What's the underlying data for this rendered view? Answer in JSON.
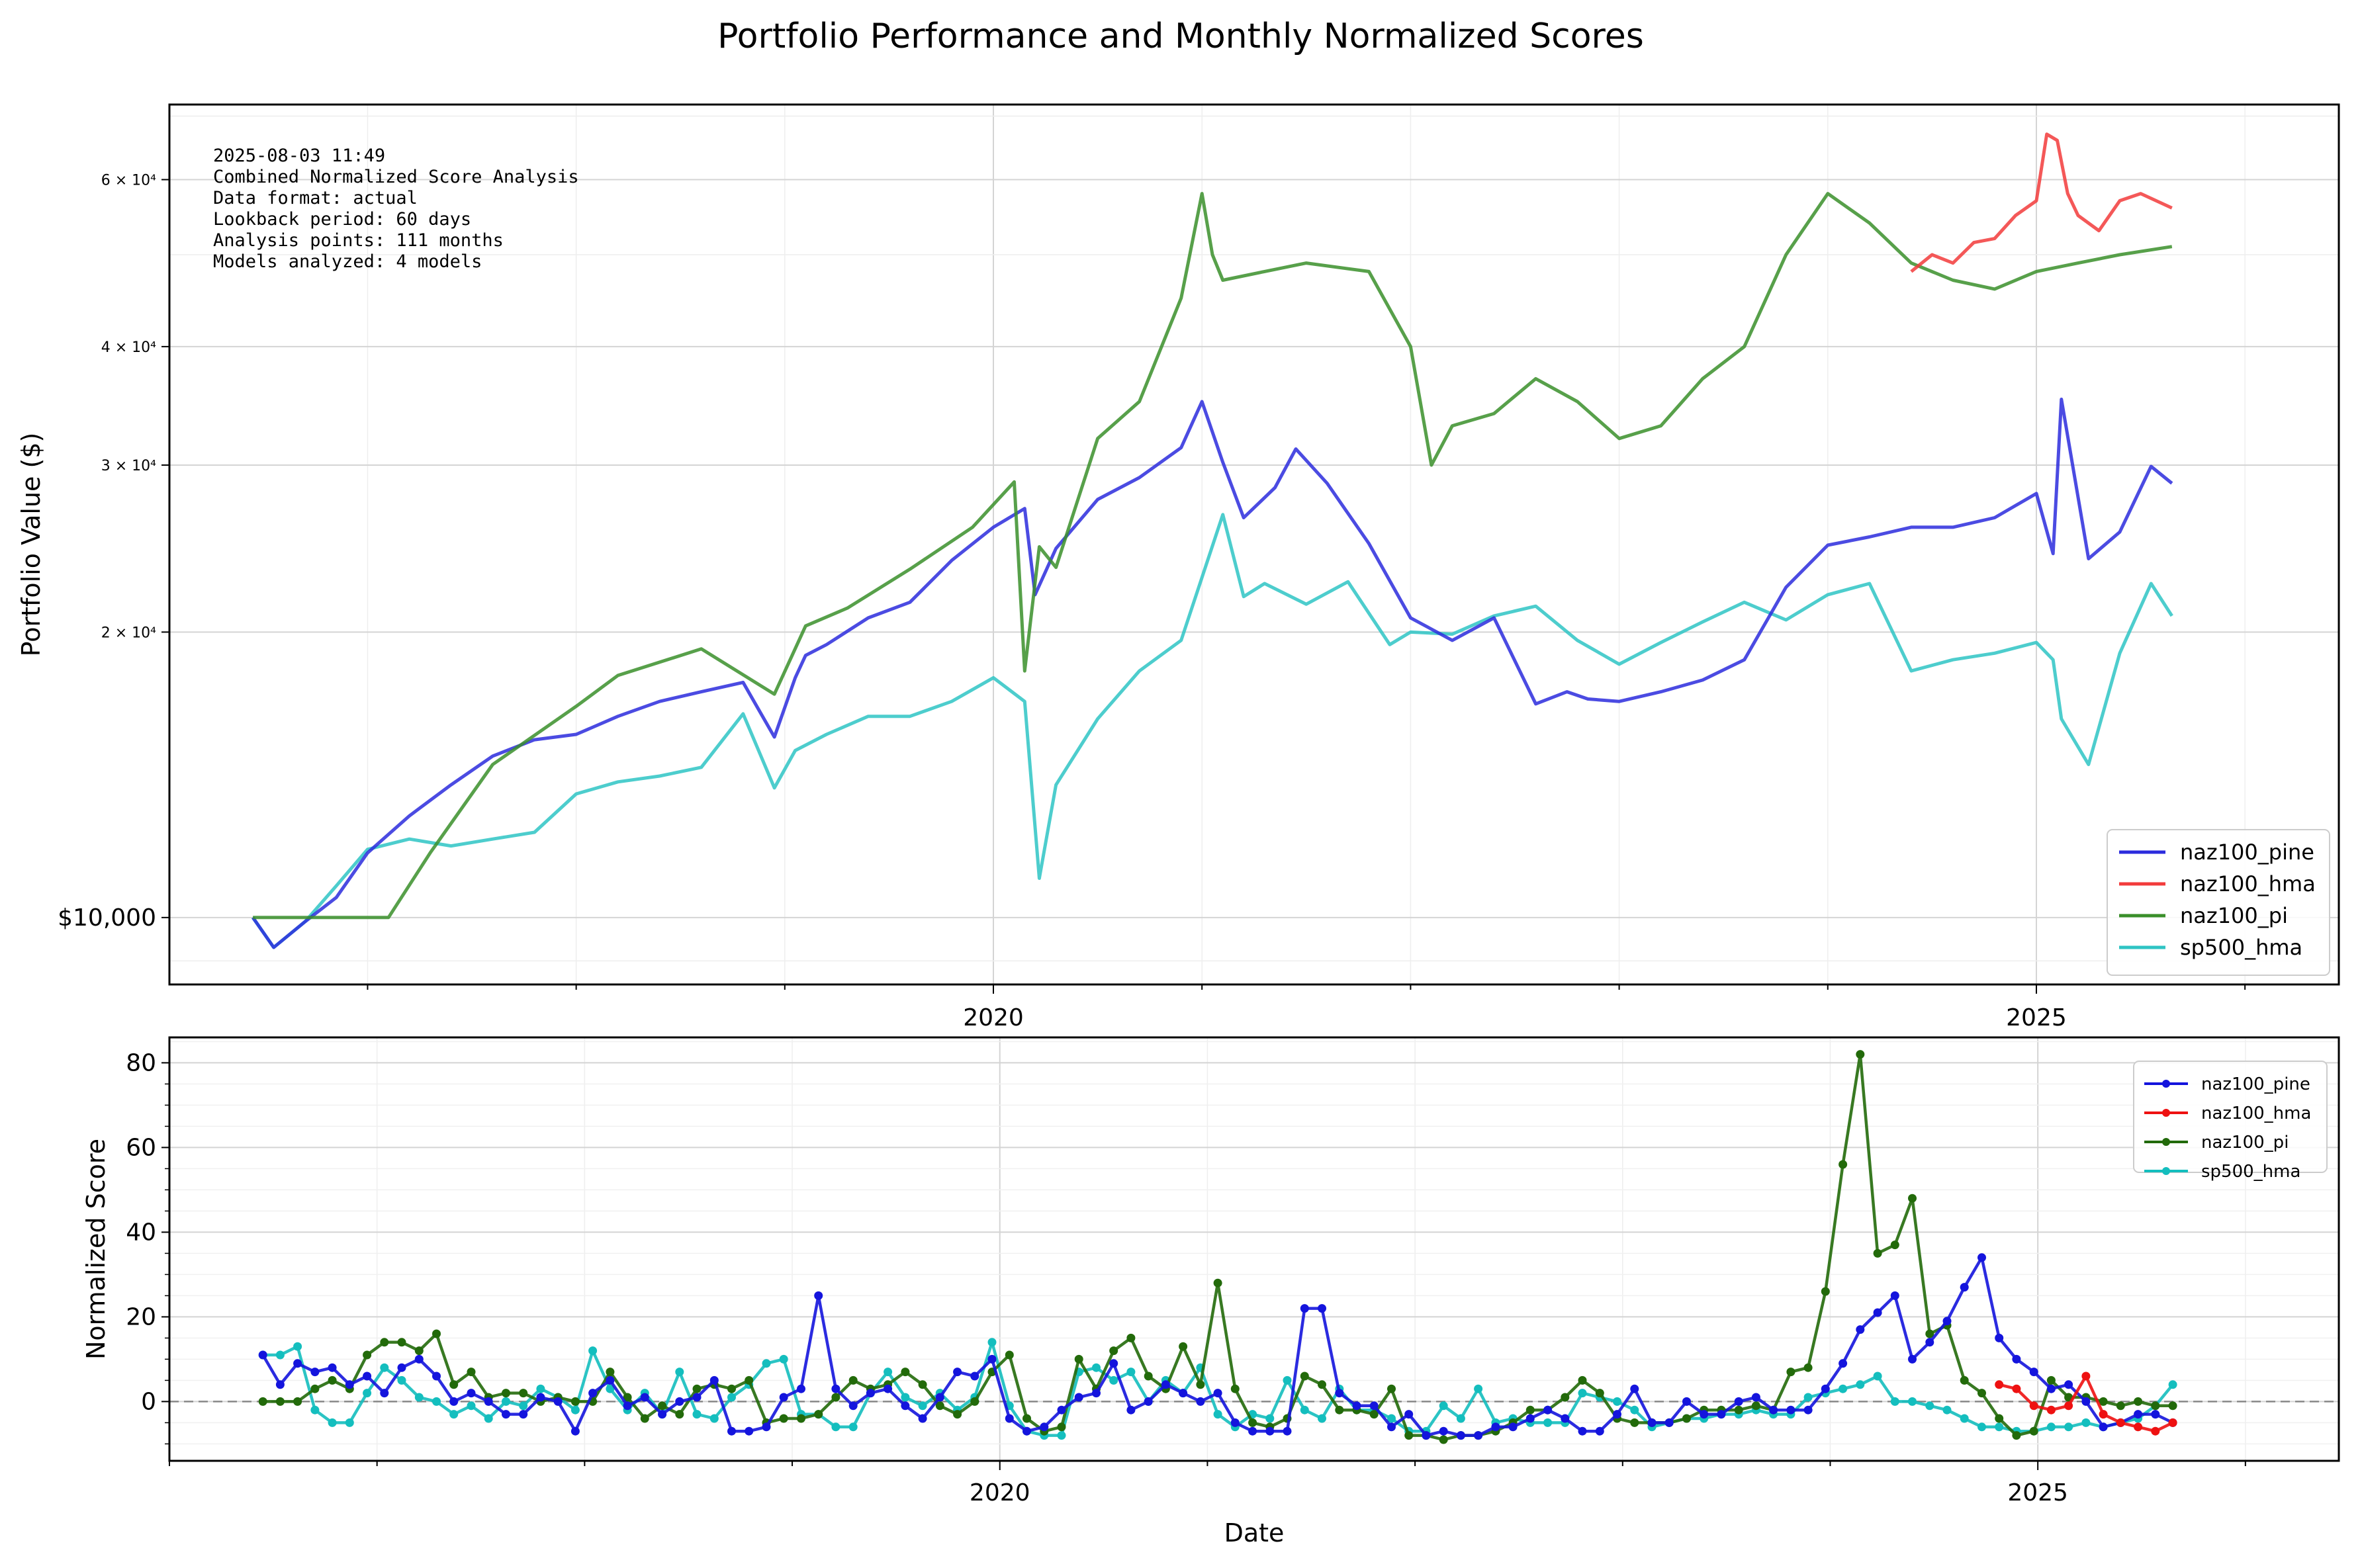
{
  "figure": {
    "title": "Portfolio Performance and Monthly Normalized Scores"
  },
  "info_box": {
    "lines": [
      "2025-08-03 11:49",
      "Combined Normalized Score Analysis",
      "Data format: actual",
      "Lookback period: 60 days",
      "Analysis points: 111 months",
      "Models analyzed: 4 models"
    ]
  },
  "colors": {
    "naz100_pine": "#2b2bdd",
    "naz100_hma": "#f23b3b",
    "naz100_pi": "#3a8f2a",
    "sp500_hma": "#2ec4c4",
    "overlap_green": "#3d5c14",
    "score_green": "#226a0a",
    "score_blue": "#1414dd",
    "score_red": "#ee1111",
    "score_cyan": "#14bebe"
  },
  "chart_data": [
    {
      "type": "line",
      "ylabel": "Portfolio Value ($)",
      "xlabel": "",
      "yscale": "log",
      "xlim": [
        2016.05,
        2026.45
      ],
      "ylim": [
        8500,
        72000
      ],
      "grid": true,
      "legend_position": "lower-right",
      "x_ticks": [
        2020,
        2025
      ],
      "x_tick_labels": [
        "2020",
        "2025"
      ],
      "y_ticks": [
        10000,
        20000,
        30000,
        40000,
        60000
      ],
      "y_tick_labels": [
        "$10,000",
        "2 × 10⁴",
        "3 × 10⁴",
        "4 × 10⁴",
        "6 × 10⁴"
      ],
      "series": [
        {
          "name": "naz100_pine",
          "color_key": "naz100_pine",
          "x": [
            2016.45,
            2016.55,
            2016.7,
            2016.85,
            2017.0,
            2017.2,
            2017.4,
            2017.6,
            2017.8,
            2018.0,
            2018.2,
            2018.4,
            2018.6,
            2018.8,
            2018.95,
            2019.05,
            2019.1,
            2019.2,
            2019.4,
            2019.6,
            2019.8,
            2020.0,
            2020.15,
            2020.2,
            2020.3,
            2020.5,
            2020.7,
            2020.9,
            2021.0,
            2021.1,
            2021.2,
            2021.35,
            2021.45,
            2021.6,
            2021.8,
            2022.0,
            2022.2,
            2022.4,
            2022.6,
            2022.75,
            2022.85,
            2023.0,
            2023.2,
            2023.4,
            2023.6,
            2023.8,
            2024.0,
            2024.2,
            2024.4,
            2024.6,
            2024.8,
            2025.0,
            2025.08,
            2025.12,
            2025.25,
            2025.4,
            2025.55,
            2025.65
          ],
          "y": [
            10000,
            9300,
            9900,
            10500,
            11700,
            12800,
            13800,
            14800,
            15400,
            15600,
            16300,
            16900,
            17300,
            17700,
            15500,
            17900,
            18900,
            19400,
            20700,
            21500,
            23800,
            25800,
            27000,
            21900,
            24500,
            27600,
            29100,
            31300,
            35000,
            30200,
            26400,
            28400,
            31200,
            28700,
            24800,
            20700,
            19600,
            20700,
            16800,
            17300,
            17000,
            16900,
            17300,
            17800,
            18700,
            22300,
            24700,
            25200,
            25800,
            25800,
            26400,
            28000,
            24200,
            35200,
            23900,
            25500,
            29900,
            28700
          ]
        },
        {
          "name": "naz100_hma",
          "color_key": "naz100_hma",
          "x": [
            2024.4,
            2024.5,
            2024.6,
            2024.7,
            2024.8,
            2024.9,
            2025.0,
            2025.05,
            2025.1,
            2025.15,
            2025.2,
            2025.3,
            2025.4,
            2025.5,
            2025.65
          ],
          "y": [
            48000,
            50000,
            49000,
            51500,
            52000,
            55000,
            57000,
            67000,
            66000,
            58000,
            55000,
            53000,
            57000,
            58000,
            56000
          ]
        },
        {
          "name": "naz100_pi",
          "color_key": "naz100_pi",
          "x": [
            2016.45,
            2017.1,
            2017.3,
            2017.6,
            2018.0,
            2018.2,
            2018.6,
            2018.95,
            2019.1,
            2019.3,
            2019.6,
            2019.9,
            2020.1,
            2020.15,
            2020.22,
            2020.3,
            2020.5,
            2020.7,
            2020.9,
            2021.0,
            2021.05,
            2021.1,
            2021.3,
            2021.5,
            2021.8,
            2022.0,
            2022.1,
            2022.2,
            2022.4,
            2022.6,
            2022.8,
            2023.0,
            2023.2,
            2023.4,
            2023.6,
            2023.8,
            2024.0,
            2024.2,
            2024.4,
            2024.6,
            2024.8,
            2025.0,
            2025.2,
            2025.4,
            2025.65
          ],
          "y": [
            10000,
            10000,
            11700,
            14500,
            16700,
            18000,
            19200,
            17200,
            20300,
            21200,
            23300,
            25800,
            28800,
            18200,
            24600,
            23400,
            32000,
            35000,
            45000,
            58000,
            50000,
            47000,
            48000,
            49000,
            48000,
            40000,
            30000,
            33000,
            34000,
            37000,
            35000,
            32000,
            33000,
            37000,
            40000,
            50000,
            58000,
            54000,
            49000,
            47000,
            46000,
            48000,
            49000,
            50000,
            51000
          ]
        },
        {
          "name": "sp500_hma",
          "color_key": "sp500_hma",
          "x": [
            2016.45,
            2016.55,
            2016.7,
            2016.85,
            2017.0,
            2017.2,
            2017.4,
            2017.6,
            2017.8,
            2018.0,
            2018.2,
            2018.4,
            2018.6,
            2018.8,
            2018.95,
            2019.05,
            2019.2,
            2019.4,
            2019.6,
            2019.8,
            2020.0,
            2020.15,
            2020.22,
            2020.3,
            2020.5,
            2020.7,
            2020.9,
            2021.1,
            2021.2,
            2021.3,
            2021.5,
            2021.7,
            2021.9,
            2022.0,
            2022.2,
            2022.4,
            2022.6,
            2022.8,
            2023.0,
            2023.2,
            2023.4,
            2023.6,
            2023.8,
            2024.0,
            2024.2,
            2024.4,
            2024.6,
            2024.8,
            2025.0,
            2025.08,
            2025.12,
            2025.25,
            2025.4,
            2025.55,
            2025.65
          ],
          "y": [
            10000,
            9300,
            9900,
            10800,
            11800,
            12100,
            11900,
            12100,
            12300,
            13500,
            13900,
            14100,
            14400,
            16400,
            13700,
            15000,
            15600,
            16300,
            16300,
            16900,
            17900,
            16900,
            11000,
            13800,
            16200,
            18200,
            19600,
            26600,
            21800,
            22500,
            21400,
            22600,
            19400,
            20000,
            19900,
            20800,
            21300,
            19600,
            18500,
            19500,
            20500,
            21500,
            20600,
            21900,
            22500,
            18200,
            18700,
            19000,
            19500,
            18700,
            16200,
            14500,
            19000,
            22500,
            20800
          ]
        }
      ]
    },
    {
      "type": "line",
      "ylabel": "Normalized Score",
      "xlabel": "Date",
      "xlim": [
        2016.0,
        2026.45
      ],
      "ylim": [
        -14,
        86
      ],
      "grid": true,
      "legend_position": "top-right",
      "x_ticks": [
        2020,
        2025
      ],
      "x_tick_labels": [
        "2020",
        "2025"
      ],
      "y_ticks": [
        0,
        20,
        40,
        60,
        80
      ],
      "y_tick_labels": [
        "0",
        "20",
        "40",
        "60",
        "80"
      ],
      "baseline": 0,
      "series": [
        {
          "name": "naz100_pine",
          "color_key": "score_blue",
          "y": [
            11,
            4,
            9,
            7,
            8,
            4,
            6,
            2,
            8,
            10,
            6,
            0,
            2,
            0,
            -3,
            -3,
            1,
            0,
            -7,
            2,
            5,
            -1,
            1,
            -3,
            0,
            1,
            5,
            -7,
            -7,
            -6,
            1,
            3,
            25,
            3,
            -1,
            2,
            3,
            -1,
            -4,
            1,
            7,
            6,
            10,
            -4,
            -7,
            -6,
            -2,
            1,
            2,
            9,
            -2,
            0,
            4,
            2,
            0,
            2,
            -5,
            -7,
            -7,
            -7,
            22,
            22,
            2,
            -1,
            -1,
            -6,
            -3,
            -8,
            -7,
            -8,
            -8,
            -6,
            -6,
            -4,
            -2,
            -4,
            -7,
            -7,
            -3,
            3,
            -5,
            -5,
            0,
            -3,
            -3,
            0,
            1,
            -2,
            -2,
            -2,
            3,
            9,
            17,
            21,
            25,
            10,
            14,
            19,
            27,
            34,
            15,
            10,
            7,
            3,
            4,
            0,
            -6,
            -5,
            -3,
            -3,
            -5
          ]
        },
        {
          "name": "naz100_hma",
          "color_key": "score_red",
          "y": [
            null,
            null,
            null,
            null,
            null,
            null,
            null,
            null,
            null,
            null,
            null,
            null,
            null,
            null,
            null,
            null,
            null,
            null,
            null,
            null,
            null,
            null,
            null,
            null,
            null,
            null,
            null,
            null,
            null,
            null,
            null,
            null,
            null,
            null,
            null,
            null,
            null,
            null,
            null,
            null,
            null,
            null,
            null,
            null,
            null,
            null,
            null,
            null,
            null,
            null,
            null,
            null,
            null,
            null,
            null,
            null,
            null,
            null,
            null,
            null,
            null,
            null,
            null,
            null,
            null,
            null,
            null,
            null,
            null,
            null,
            null,
            null,
            null,
            null,
            null,
            null,
            null,
            null,
            null,
            null,
            null,
            null,
            null,
            null,
            null,
            null,
            null,
            null,
            null,
            null,
            null,
            null,
            null,
            null,
            null,
            null,
            null,
            null,
            null,
            null,
            4,
            3,
            -1,
            -2,
            -1,
            6,
            -3,
            -5,
            -6,
            -7,
            -5
          ]
        },
        {
          "name": "naz100_pi",
          "color_key": "score_green",
          "y": [
            0,
            0,
            0,
            3,
            5,
            3,
            11,
            14,
            14,
            12,
            16,
            4,
            7,
            1,
            2,
            2,
            0,
            1,
            0,
            0,
            7,
            1,
            -4,
            -1,
            -3,
            3,
            4,
            3,
            5,
            -5,
            -4,
            -4,
            -3,
            1,
            5,
            3,
            4,
            7,
            4,
            -1,
            -3,
            0,
            7,
            11,
            -4,
            -7,
            -6,
            10,
            3,
            12,
            15,
            6,
            3,
            13,
            4,
            28,
            3,
            -5,
            -6,
            -4,
            6,
            4,
            -2,
            -2,
            -3,
            3,
            -8,
            -8,
            -9,
            -8,
            -8,
            -7,
            -5,
            -2,
            -2,
            1,
            5,
            2,
            -4,
            -5,
            -5,
            -5,
            -4,
            -2,
            -2,
            -2,
            -1,
            -2,
            7,
            8,
            26,
            56,
            82,
            35,
            37,
            48,
            16,
            18,
            5,
            2,
            -4,
            -8,
            -7,
            5,
            1,
            1,
            0,
            -1,
            0,
            -1,
            -1
          ]
        },
        {
          "name": "sp500_hma",
          "color_key": "score_cyan",
          "y": [
            11,
            11,
            13,
            -2,
            -5,
            -5,
            2,
            8,
            5,
            1,
            0,
            -3,
            -1,
            -4,
            0,
            -1,
            3,
            1,
            -2,
            12,
            3,
            -2,
            2,
            -3,
            7,
            -3,
            -4,
            1,
            4,
            9,
            10,
            -3,
            -3,
            -6,
            -6,
            2,
            7,
            1,
            -1,
            2,
            -2,
            1,
            14,
            -1,
            -7,
            -8,
            -8,
            7,
            8,
            5,
            7,
            0,
            5,
            2,
            8,
            -3,
            -6,
            -3,
            -4,
            5,
            -2,
            -4,
            3,
            -2,
            -2,
            -4,
            -7,
            -7,
            -1,
            -4,
            3,
            -5,
            -4,
            -5,
            -5,
            -5,
            2,
            1,
            0,
            -2,
            -6,
            -5,
            -4,
            -4,
            -3,
            -3,
            -2,
            -3,
            -3,
            1,
            2,
            3,
            4,
            6,
            0,
            0,
            -1,
            -2,
            -4,
            -6,
            -6,
            -7,
            -7,
            -6,
            -6,
            -5,
            -6,
            -5,
            -4,
            -1,
            4
          ]
        }
      ]
    }
  ]
}
